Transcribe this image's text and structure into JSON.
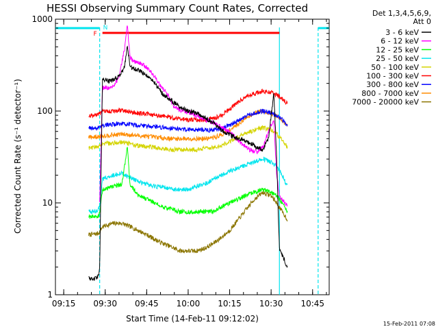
{
  "chart_data": {
    "type": "line",
    "title": "HESSI Observing Summary Count Rates, Corrected",
    "xlabel": "Start Time (14-Feb-11 09:12:02)",
    "ylabel": "Corrected Count Rate (s⁻¹ detector⁻¹)",
    "footer": "15-Feb-2011 07:08",
    "y_scale": "log",
    "ylim": [
      1,
      1000
    ],
    "xlim": [
      "09:12",
      "10:51"
    ],
    "x_ticks": [
      "09:15",
      "09:30",
      "09:45",
      "10:00",
      "10:15",
      "10:30",
      "10:45"
    ],
    "y_ticks": [
      "1",
      "10",
      "100",
      "1000"
    ],
    "legend_header": [
      "Det 1,3,4,5,6,9,",
      "Att 0"
    ],
    "legend_placement": "right",
    "flags": {
      "F_label": "F",
      "N_label": "N",
      "F_color": "#ff0000",
      "N_color": "#00e5ee",
      "flare_flag": {
        "start": "09:29",
        "end": "10:33"
      },
      "night_bars": [
        {
          "start": "09:12",
          "end": "09:28"
        },
        {
          "start": "10:47",
          "end": "10:51"
        }
      ],
      "night_lines": [
        "09:28",
        "10:33",
        "10:47"
      ]
    },
    "data_start": "09:24",
    "data_end": "10:36",
    "series": [
      {
        "name": "3 - 6 keV",
        "color": "#000000",
        "points": [
          [
            "09:24",
            1.5
          ],
          [
            "09:27",
            1.5
          ],
          [
            "09:28",
            1.9
          ],
          [
            "09:29",
            220
          ],
          [
            "09:32",
            210
          ],
          [
            "09:35",
            240
          ],
          [
            "09:37",
            300
          ],
          [
            "09:38",
            500
          ],
          [
            "09:39",
            300
          ],
          [
            "09:42",
            280
          ],
          [
            "09:45",
            240
          ],
          [
            "09:48",
            200
          ],
          [
            "09:51",
            150
          ],
          [
            "09:54",
            130
          ],
          [
            "09:57",
            110
          ],
          [
            "10:00",
            100
          ],
          [
            "10:03",
            95
          ],
          [
            "10:06",
            85
          ],
          [
            "10:09",
            75
          ],
          [
            "10:12",
            62
          ],
          [
            "10:15",
            55
          ],
          [
            "10:18",
            50
          ],
          [
            "10:21",
            47
          ],
          [
            "10:24",
            42
          ],
          [
            "10:27",
            38
          ],
          [
            "10:29",
            50
          ],
          [
            "10:31",
            160
          ],
          [
            "10:32",
            30
          ],
          [
            "10:33",
            3.2
          ],
          [
            "10:35",
            2.3
          ],
          [
            "10:36",
            2.0
          ]
        ]
      },
      {
        "name": "6 - 12 keV",
        "color": "#ff00ff",
        "points": [
          [
            "09:28",
            10
          ],
          [
            "09:29",
            180
          ],
          [
            "09:32",
            175
          ],
          [
            "09:35",
            230
          ],
          [
            "09:37",
            480
          ],
          [
            "09:38",
            850
          ],
          [
            "09:39",
            380
          ],
          [
            "09:41",
            340
          ],
          [
            "09:44",
            320
          ],
          [
            "09:47",
            260
          ],
          [
            "09:50",
            190
          ],
          [
            "09:53",
            145
          ],
          [
            "09:55",
            110
          ],
          [
            "09:58",
            100
          ],
          [
            "10:01",
            95
          ],
          [
            "10:04",
            85
          ],
          [
            "10:07",
            78
          ],
          [
            "10:10",
            72
          ],
          [
            "10:13",
            65
          ],
          [
            "10:16",
            55
          ],
          [
            "10:19",
            45
          ],
          [
            "10:22",
            38
          ],
          [
            "10:25",
            36
          ],
          [
            "10:27",
            40
          ],
          [
            "10:29",
            60
          ],
          [
            "10:31",
            80
          ],
          [
            "10:32",
            20
          ],
          [
            "10:33",
            12
          ],
          [
            "10:36",
            9
          ]
        ]
      },
      {
        "name": "12 - 25 keV",
        "color": "#00ff00",
        "points": [
          [
            "09:24",
            7
          ],
          [
            "09:27",
            7
          ],
          [
            "09:28",
            7.5
          ],
          [
            "09:29",
            14
          ],
          [
            "09:33",
            15
          ],
          [
            "09:36",
            16
          ],
          [
            "09:38",
            40
          ],
          [
            "09:39",
            16
          ],
          [
            "09:42",
            12
          ],
          [
            "09:45",
            11
          ],
          [
            "09:48",
            10
          ],
          [
            "09:51",
            9
          ],
          [
            "09:54",
            8.5
          ],
          [
            "09:57",
            8
          ],
          [
            "10:00",
            8
          ],
          [
            "10:03",
            8
          ],
          [
            "10:06",
            8
          ],
          [
            "10:09",
            8
          ],
          [
            "10:12",
            9
          ],
          [
            "10:15",
            10
          ],
          [
            "10:18",
            11
          ],
          [
            "10:21",
            12
          ],
          [
            "10:24",
            13
          ],
          [
            "10:27",
            14
          ],
          [
            "10:30",
            13
          ],
          [
            "10:32",
            12
          ],
          [
            "10:34",
            10
          ],
          [
            "10:36",
            8
          ]
        ]
      },
      {
        "name": "25 - 50 keV",
        "color": "#00e5ee",
        "points": [
          [
            "09:24",
            8
          ],
          [
            "09:27",
            8
          ],
          [
            "09:28",
            9
          ],
          [
            "09:29",
            18
          ],
          [
            "09:33",
            20
          ],
          [
            "09:36",
            21
          ],
          [
            "09:39",
            19
          ],
          [
            "09:42",
            17
          ],
          [
            "09:45",
            16
          ],
          [
            "09:48",
            15
          ],
          [
            "09:51",
            15
          ],
          [
            "09:54",
            14
          ],
          [
            "09:57",
            14
          ],
          [
            "10:00",
            14
          ],
          [
            "10:03",
            15
          ],
          [
            "10:06",
            16
          ],
          [
            "10:09",
            18
          ],
          [
            "10:12",
            20
          ],
          [
            "10:15",
            22
          ],
          [
            "10:18",
            24
          ],
          [
            "10:21",
            26
          ],
          [
            "10:24",
            28
          ],
          [
            "10:27",
            30
          ],
          [
            "10:30",
            28
          ],
          [
            "10:32",
            25
          ],
          [
            "10:34",
            20
          ],
          [
            "10:36",
            15
          ]
        ]
      },
      {
        "name": "50 - 100 keV",
        "color": "#d4d400",
        "points": [
          [
            "09:24",
            40
          ],
          [
            "09:27",
            40
          ],
          [
            "09:28",
            42
          ],
          [
            "09:29",
            44
          ],
          [
            "09:33",
            45
          ],
          [
            "09:36",
            46
          ],
          [
            "09:39",
            44
          ],
          [
            "09:42",
            42
          ],
          [
            "09:45",
            41
          ],
          [
            "09:48",
            40
          ],
          [
            "09:51",
            39
          ],
          [
            "09:54",
            38
          ],
          [
            "09:57",
            38
          ],
          [
            "10:00",
            38
          ],
          [
            "10:03",
            38
          ],
          [
            "10:06",
            39
          ],
          [
            "10:09",
            40
          ],
          [
            "10:12",
            42
          ],
          [
            "10:15",
            46
          ],
          [
            "10:18",
            52
          ],
          [
            "10:21",
            58
          ],
          [
            "10:24",
            62
          ],
          [
            "10:27",
            66
          ],
          [
            "10:30",
            62
          ],
          [
            "10:32",
            56
          ],
          [
            "10:34",
            48
          ],
          [
            "10:36",
            40
          ]
        ]
      },
      {
        "name": "100 - 300 keV",
        "color": "#ff0000",
        "points": [
          [
            "09:24",
            90
          ],
          [
            "09:27",
            90
          ],
          [
            "09:28",
            95
          ],
          [
            "09:29",
            98
          ],
          [
            "09:33",
            100
          ],
          [
            "09:36",
            102
          ],
          [
            "09:39",
            98
          ],
          [
            "09:42",
            95
          ],
          [
            "09:45",
            93
          ],
          [
            "09:48",
            90
          ],
          [
            "09:51",
            88
          ],
          [
            "09:54",
            85
          ],
          [
            "09:57",
            83
          ],
          [
            "10:00",
            80
          ],
          [
            "10:03",
            80
          ],
          [
            "10:06",
            80
          ],
          [
            "10:09",
            82
          ],
          [
            "10:12",
            90
          ],
          [
            "10:15",
            105
          ],
          [
            "10:18",
            125
          ],
          [
            "10:21",
            145
          ],
          [
            "10:24",
            155
          ],
          [
            "10:27",
            165
          ],
          [
            "10:30",
            160
          ],
          [
            "10:32",
            150
          ],
          [
            "10:34",
            135
          ],
          [
            "10:36",
            120
          ]
        ]
      },
      {
        "name": "300 - 800 keV",
        "color": "#0000ff",
        "points": [
          [
            "09:24",
            65
          ],
          [
            "09:27",
            65
          ],
          [
            "09:28",
            68
          ],
          [
            "09:29",
            70
          ],
          [
            "09:33",
            72
          ],
          [
            "09:36",
            73
          ],
          [
            "09:39",
            71
          ],
          [
            "09:42",
            70
          ],
          [
            "09:45",
            69
          ],
          [
            "09:48",
            68
          ],
          [
            "09:51",
            66
          ],
          [
            "09:54",
            65
          ],
          [
            "09:57",
            64
          ],
          [
            "10:00",
            63
          ],
          [
            "10:03",
            63
          ],
          [
            "10:06",
            62
          ],
          [
            "10:09",
            62
          ],
          [
            "10:12",
            65
          ],
          [
            "10:15",
            70
          ],
          [
            "10:18",
            78
          ],
          [
            "10:21",
            88
          ],
          [
            "10:24",
            95
          ],
          [
            "10:27",
            100
          ],
          [
            "10:30",
            96
          ],
          [
            "10:32",
            90
          ],
          [
            "10:34",
            80
          ],
          [
            "10:36",
            70
          ]
        ]
      },
      {
        "name": "800 - 7000 keV",
        "color": "#ff8c00",
        "points": [
          [
            "09:24",
            52
          ],
          [
            "09:27",
            52
          ],
          [
            "09:28",
            53
          ],
          [
            "09:29",
            54
          ],
          [
            "09:33",
            55
          ],
          [
            "09:36",
            56
          ],
          [
            "09:39",
            55
          ],
          [
            "09:42",
            54
          ],
          [
            "09:45",
            53
          ],
          [
            "09:48",
            52
          ],
          [
            "09:51",
            51
          ],
          [
            "09:54",
            50
          ],
          [
            "09:57",
            50
          ],
          [
            "10:00",
            50
          ],
          [
            "10:03",
            50
          ],
          [
            "10:06",
            50
          ],
          [
            "10:09",
            51
          ],
          [
            "10:12",
            55
          ],
          [
            "10:15",
            62
          ],
          [
            "10:18",
            72
          ],
          [
            "10:21",
            85
          ],
          [
            "10:24",
            95
          ],
          [
            "10:27",
            100
          ],
          [
            "10:30",
            95
          ],
          [
            "10:32",
            88
          ],
          [
            "10:34",
            78
          ],
          [
            "10:36",
            68
          ]
        ]
      },
      {
        "name": "7000 - 20000 keV",
        "color": "#8b7500",
        "points": [
          [
            "09:24",
            4.5
          ],
          [
            "09:27",
            4.6
          ],
          [
            "09:28",
            4.8
          ],
          [
            "09:29",
            5.5
          ],
          [
            "09:33",
            6.0
          ],
          [
            "09:36",
            6.0
          ],
          [
            "09:39",
            5.5
          ],
          [
            "09:42",
            5.0
          ],
          [
            "09:45",
            4.5
          ],
          [
            "09:48",
            4.0
          ],
          [
            "09:51",
            3.6
          ],
          [
            "09:54",
            3.3
          ],
          [
            "09:57",
            3.0
          ],
          [
            "10:00",
            3.0
          ],
          [
            "10:03",
            3.0
          ],
          [
            "10:06",
            3.2
          ],
          [
            "10:09",
            3.6
          ],
          [
            "10:12",
            4.2
          ],
          [
            "10:15",
            5.0
          ],
          [
            "10:18",
            6.5
          ],
          [
            "10:21",
            8.5
          ],
          [
            "10:24",
            11
          ],
          [
            "10:27",
            13
          ],
          [
            "10:30",
            12
          ],
          [
            "10:32",
            10
          ],
          [
            "10:34",
            8
          ],
          [
            "10:36",
            6.5
          ]
        ]
      }
    ]
  }
}
